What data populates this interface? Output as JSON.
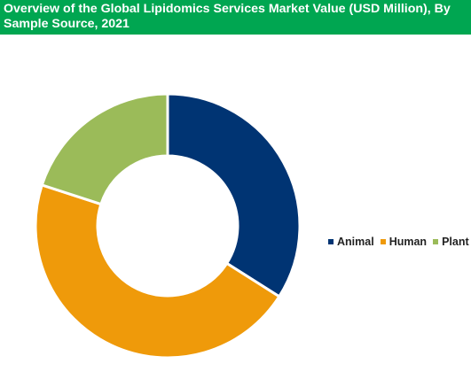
{
  "title": "Overview of the Global Lipidomics Services Market Value (USD Million), By Sample Source, 2021",
  "colors": {
    "header_bg": "#00a651",
    "Animal": "#003473",
    "Human": "#ef9a0a",
    "Plant": "#9bbb59"
  },
  "chart_data": {
    "type": "pie",
    "variant": "donut",
    "categories": [
      "Animal",
      "Human",
      "Plant"
    ],
    "values": [
      34,
      46,
      20
    ],
    "colors": [
      "#003473",
      "#ef9a0a",
      "#9bbb59"
    ],
    "legend": [
      "Animal",
      "Human",
      "Plant"
    ],
    "legend_position": "right"
  }
}
